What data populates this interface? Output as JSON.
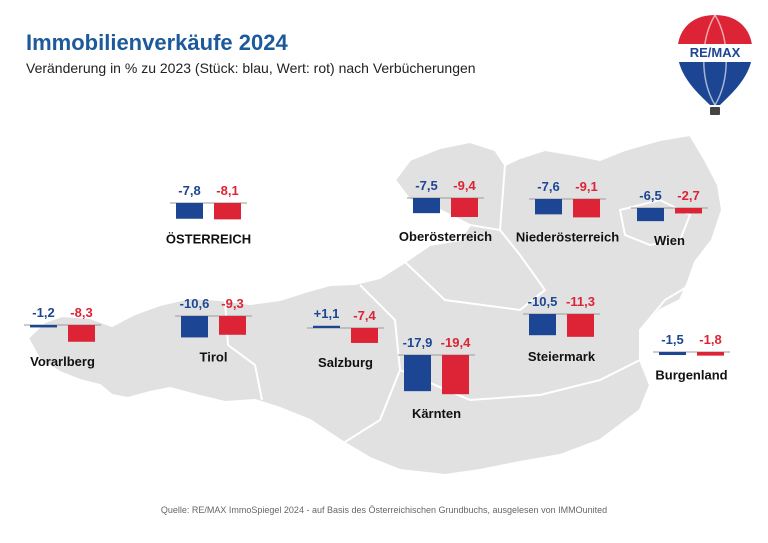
{
  "title": "Immobilienverkäufe 2024",
  "subtitle": "Veränderung in % zu 2023 (Stück: blau, Wert: rot) nach Verbücherungen",
  "source": "Quelle: RE/MAX ImmoSpiegel 2024 - auf Basis des Österreichischen Grundbuchs, ausgelesen von IMMOunited",
  "logo_text": "RE/MAX",
  "colors": {
    "blue": "#1c4694",
    "red": "#dc2436",
    "title": "#1c5a9c",
    "map": "#e1e1e1"
  },
  "chart_data": {
    "type": "bar",
    "series": [
      {
        "name": "Stück",
        "color": "#1c4694"
      },
      {
        "name": "Wert",
        "color": "#dc2436"
      }
    ],
    "groups": [
      {
        "region": "ÖSTERREICH",
        "stueck": -7.8,
        "wert": -8.1,
        "stueck_label": "-7,8",
        "wert_label": "-8,1"
      },
      {
        "region": "Oberösterreich",
        "stueck": -7.5,
        "wert": -9.4,
        "stueck_label": "-7,5",
        "wert_label": "-9,4"
      },
      {
        "region": "Niederösterreich",
        "stueck": -7.6,
        "wert": -9.1,
        "stueck_label": "-7,6",
        "wert_label": "-9,1"
      },
      {
        "region": "Wien",
        "stueck": -6.5,
        "wert": -2.7,
        "stueck_label": "-6,5",
        "wert_label": "-2,7"
      },
      {
        "region": "Vorarlberg",
        "stueck": -1.2,
        "wert": -8.3,
        "stueck_label": "-1,2",
        "wert_label": "-8,3"
      },
      {
        "region": "Tirol",
        "stueck": -10.6,
        "wert": -9.3,
        "stueck_label": "-10,6",
        "wert_label": "-9,3"
      },
      {
        "region": "Salzburg",
        "stueck": 1.1,
        "wert": -7.4,
        "stueck_label": "+1,1",
        "wert_label": "-7,4"
      },
      {
        "region": "Steiermark",
        "stueck": -10.5,
        "wert": -11.3,
        "stueck_label": "-10,5",
        "wert_label": "-11,3"
      },
      {
        "region": "Burgenland",
        "stueck": -1.5,
        "wert": -1.8,
        "stueck_label": "-1,5",
        "wert_label": "-1,8"
      },
      {
        "region": "Kärnten",
        "stueck": -17.9,
        "wert": -19.4,
        "stueck_label": "-17,9",
        "wert_label": "-19,4"
      }
    ]
  }
}
